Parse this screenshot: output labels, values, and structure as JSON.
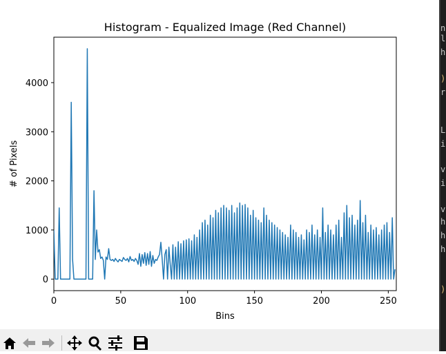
{
  "chart_data": {
    "type": "line",
    "title": "Histogram - Equalized Image (Red Channel)",
    "xlabel": "Bins",
    "ylabel": "# of Pixels",
    "x": [
      0,
      1,
      2,
      3,
      4,
      5,
      6,
      7,
      8,
      9,
      10,
      11,
      12,
      13,
      14,
      15,
      16,
      17,
      18,
      19,
      20,
      21,
      22,
      23,
      24,
      25,
      26,
      27,
      28,
      29,
      30,
      31,
      32,
      33,
      34,
      35,
      36,
      37,
      38,
      39,
      40,
      41,
      42,
      43,
      44,
      45,
      46,
      47,
      48,
      49,
      50,
      51,
      52,
      53,
      54,
      55,
      56,
      57,
      58,
      59,
      60,
      61,
      62,
      63,
      64,
      65,
      66,
      67,
      68,
      69,
      70,
      71,
      72,
      73,
      74,
      75,
      76,
      77,
      78,
      79,
      80,
      81,
      82,
      83,
      84,
      85,
      86,
      87,
      88,
      89,
      90,
      91,
      92,
      93,
      94,
      95,
      96,
      97,
      98,
      99,
      100,
      101,
      102,
      103,
      104,
      105,
      106,
      107,
      108,
      109,
      110,
      111,
      112,
      113,
      114,
      115,
      116,
      117,
      118,
      119,
      120,
      121,
      122,
      123,
      124,
      125,
      126,
      127,
      128,
      129,
      130,
      131,
      132,
      133,
      134,
      135,
      136,
      137,
      138,
      139,
      140,
      141,
      142,
      143,
      144,
      145,
      146,
      147,
      148,
      149,
      150,
      151,
      152,
      153,
      154,
      155,
      156,
      157,
      158,
      159,
      160,
      161,
      162,
      163,
      164,
      165,
      166,
      167,
      168,
      169,
      170,
      171,
      172,
      173,
      174,
      175,
      176,
      177,
      178,
      179,
      180,
      181,
      182,
      183,
      184,
      185,
      186,
      187,
      188,
      189,
      190,
      191,
      192,
      193,
      194,
      195,
      196,
      197,
      198,
      199,
      200,
      201,
      202,
      203,
      204,
      205,
      206,
      207,
      208,
      209,
      210,
      211,
      212,
      213,
      214,
      215,
      216,
      217,
      218,
      219,
      220,
      221,
      222,
      223,
      224,
      225,
      226,
      227,
      228,
      229,
      230,
      231,
      232,
      233,
      234,
      235,
      236,
      237,
      238,
      239,
      240,
      241,
      242,
      243,
      244,
      245,
      246,
      247,
      248,
      249,
      250,
      251,
      252,
      253,
      254,
      255
    ],
    "series": [
      {
        "name": "Red",
        "color": "#1f77b4",
        "values": [
          1000,
          0,
          0,
          0,
          1450,
          0,
          0,
          0,
          0,
          0,
          0,
          0,
          0,
          3600,
          400,
          0,
          0,
          0,
          0,
          0,
          0,
          0,
          0,
          0,
          0,
          4690,
          0,
          0,
          0,
          0,
          1800,
          400,
          1000,
          550,
          600,
          420,
          450,
          380,
          0,
          450,
          400,
          620,
          400,
          380,
          400,
          360,
          420,
          380,
          350,
          400,
          380,
          360,
          440,
          400,
          380,
          420,
          350,
          460,
          380,
          400,
          360,
          420,
          380,
          300,
          520,
          260,
          500,
          320,
          540,
          280,
          520,
          300,
          560,
          260,
          480,
          320,
          400,
          380,
          450,
          500,
          750,
          400,
          0,
          500,
          600,
          0,
          650,
          300,
          0,
          700,
          0,
          650,
          0,
          760,
          0,
          720,
          0,
          780,
          0,
          800,
          0,
          820,
          0,
          780,
          0,
          900,
          0,
          850,
          0,
          1000,
          0,
          1150,
          0,
          1200,
          0,
          1100,
          0,
          1300,
          0,
          1250,
          0,
          1400,
          0,
          1350,
          0,
          1450,
          0,
          1500,
          0,
          1450,
          0,
          1400,
          0,
          1500,
          0,
          1350,
          0,
          1450,
          0,
          1550,
          0,
          1500,
          0,
          1520,
          0,
          1450,
          0,
          1300,
          0,
          1400,
          0,
          1250,
          0,
          1200,
          0,
          1150,
          0,
          1450,
          0,
          1300,
          0,
          1200,
          0,
          1150,
          0,
          1100,
          0,
          1050,
          0,
          1000,
          0,
          950,
          0,
          900,
          0,
          850,
          0,
          1100,
          0,
          1000,
          0,
          950,
          0,
          850,
          0,
          900,
          0,
          800,
          0,
          1000,
          0,
          950,
          0,
          1100,
          0,
          900,
          0,
          1000,
          0,
          850,
          0,
          1450,
          0,
          950,
          0,
          1100,
          0,
          1000,
          0,
          900,
          0,
          1100,
          0,
          1200,
          0,
          850,
          0,
          1350,
          0,
          1500,
          0,
          1250,
          0,
          1300,
          0,
          1100,
          0,
          1200,
          0,
          1600,
          0,
          1150,
          0,
          1300,
          0,
          950,
          0,
          1100,
          0,
          1000,
          0,
          1050,
          0,
          900,
          0,
          1000,
          0,
          1100,
          0,
          1150,
          0,
          950,
          0,
          1250,
          0,
          200
        ]
      }
    ],
    "xlim": [
      0,
      256
    ],
    "xticks": [
      0,
      50,
      100,
      150,
      200,
      250
    ],
    "ylim": [
      -235,
      4925
    ],
    "yticks": [
      0,
      1000,
      2000,
      3000,
      4000
    ],
    "grid": false
  },
  "sidebar_fragments": [
    "n",
    "l",
    "h",
    ")",
    "r",
    "L",
    "i",
    "v",
    "i",
    "v",
    "h",
    "h",
    "h",
    ")"
  ]
}
